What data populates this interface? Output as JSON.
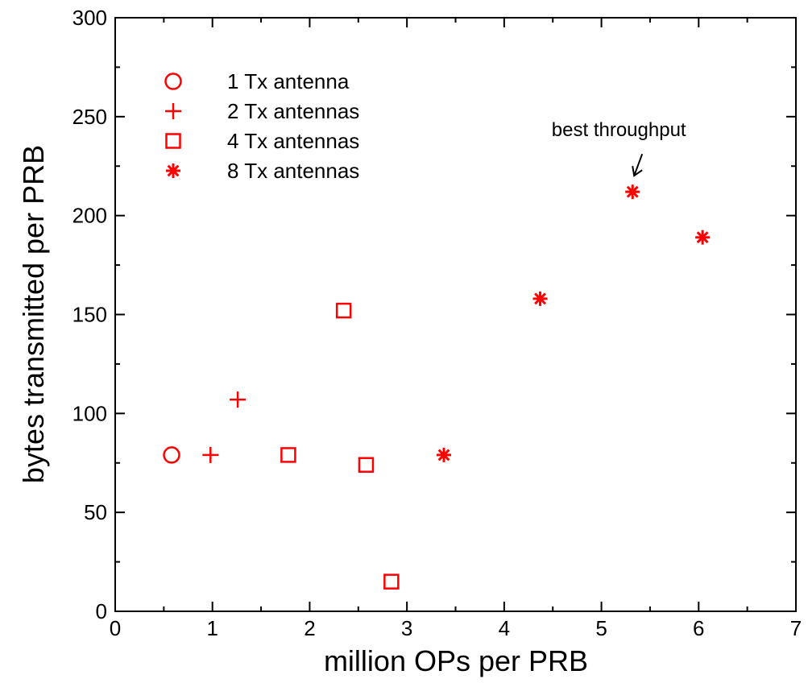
{
  "chart_data": {
    "type": "scatter",
    "title": "",
    "xlabel": "million OPs per PRB",
    "ylabel": "bytes transmitted per PRB",
    "xlim": [
      0,
      7
    ],
    "ylim": [
      0,
      300
    ],
    "xticks": [
      0,
      1,
      2,
      3,
      4,
      5,
      6,
      7
    ],
    "yticks": [
      0,
      50,
      100,
      150,
      200,
      250,
      300
    ],
    "grid": false,
    "legend_position": "top-left",
    "marker_color": "#ff0000",
    "series": [
      {
        "name": "1 Tx antenna",
        "marker": "circle",
        "points": [
          [
            0.58,
            79
          ]
        ]
      },
      {
        "name": "2 Tx antennas",
        "marker": "plus",
        "points": [
          [
            0.98,
            79
          ],
          [
            1.26,
            107
          ]
        ]
      },
      {
        "name": "4 Tx antennas",
        "marker": "square",
        "points": [
          [
            1.78,
            79
          ],
          [
            2.35,
            152
          ],
          [
            2.58,
            74
          ],
          [
            2.84,
            15
          ]
        ]
      },
      {
        "name": "8 Tx antennas",
        "marker": "star",
        "points": [
          [
            3.38,
            79
          ],
          [
            4.37,
            158
          ],
          [
            5.32,
            212
          ],
          [
            6.04,
            189
          ]
        ]
      }
    ],
    "annotations": [
      {
        "text": "best throughput",
        "x": 5.32,
        "y": 212
      }
    ]
  }
}
